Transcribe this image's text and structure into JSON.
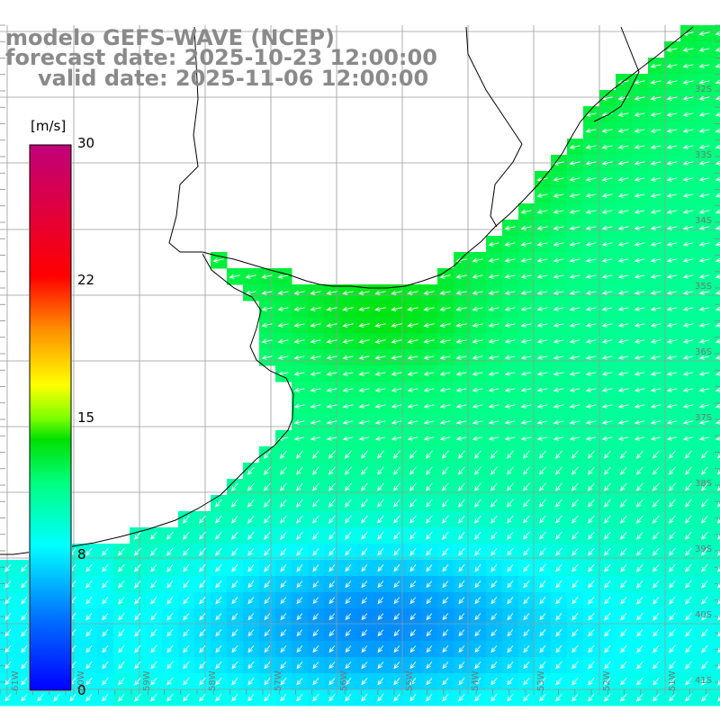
{
  "title": {
    "line1": "modelo GEFS-WAVE (NCEP)",
    "line2": "forecast date: 2025-10-23 12:00:00",
    "line3": "valid date: 2025-11-06 12:00:00"
  },
  "colorbar": {
    "unit": "[m/s]",
    "ticks": [
      "30",
      "22",
      "15",
      "8",
      "0"
    ],
    "tick_values": [
      30,
      22,
      15,
      8,
      0
    ],
    "min": 0,
    "max": 30,
    "colors": [
      "#0000ff",
      "#00b4ff",
      "#00ffff",
      "#00ff00",
      "#ffff00",
      "#ff8000",
      "#ff0000",
      "#c00080"
    ]
  },
  "graticule": {
    "lat_labels": [
      "32S",
      "33S",
      "34S",
      "35S",
      "36S",
      "37S",
      "38S",
      "39S",
      "40S",
      "41S"
    ],
    "lon_labels": [
      "61W",
      "60W",
      "59W",
      "58W",
      "57W",
      "56W",
      "55W",
      "54W",
      "53W",
      "52W",
      "51W"
    ]
  },
  "map": {
    "land_color": "#ffffff",
    "coast_color": "#000000",
    "grid_color": "#9a9a9a",
    "arrow_color": "#ffffff",
    "arrow_direction": "wind from east/northeast, arrows pointing west-southwest"
  }
}
